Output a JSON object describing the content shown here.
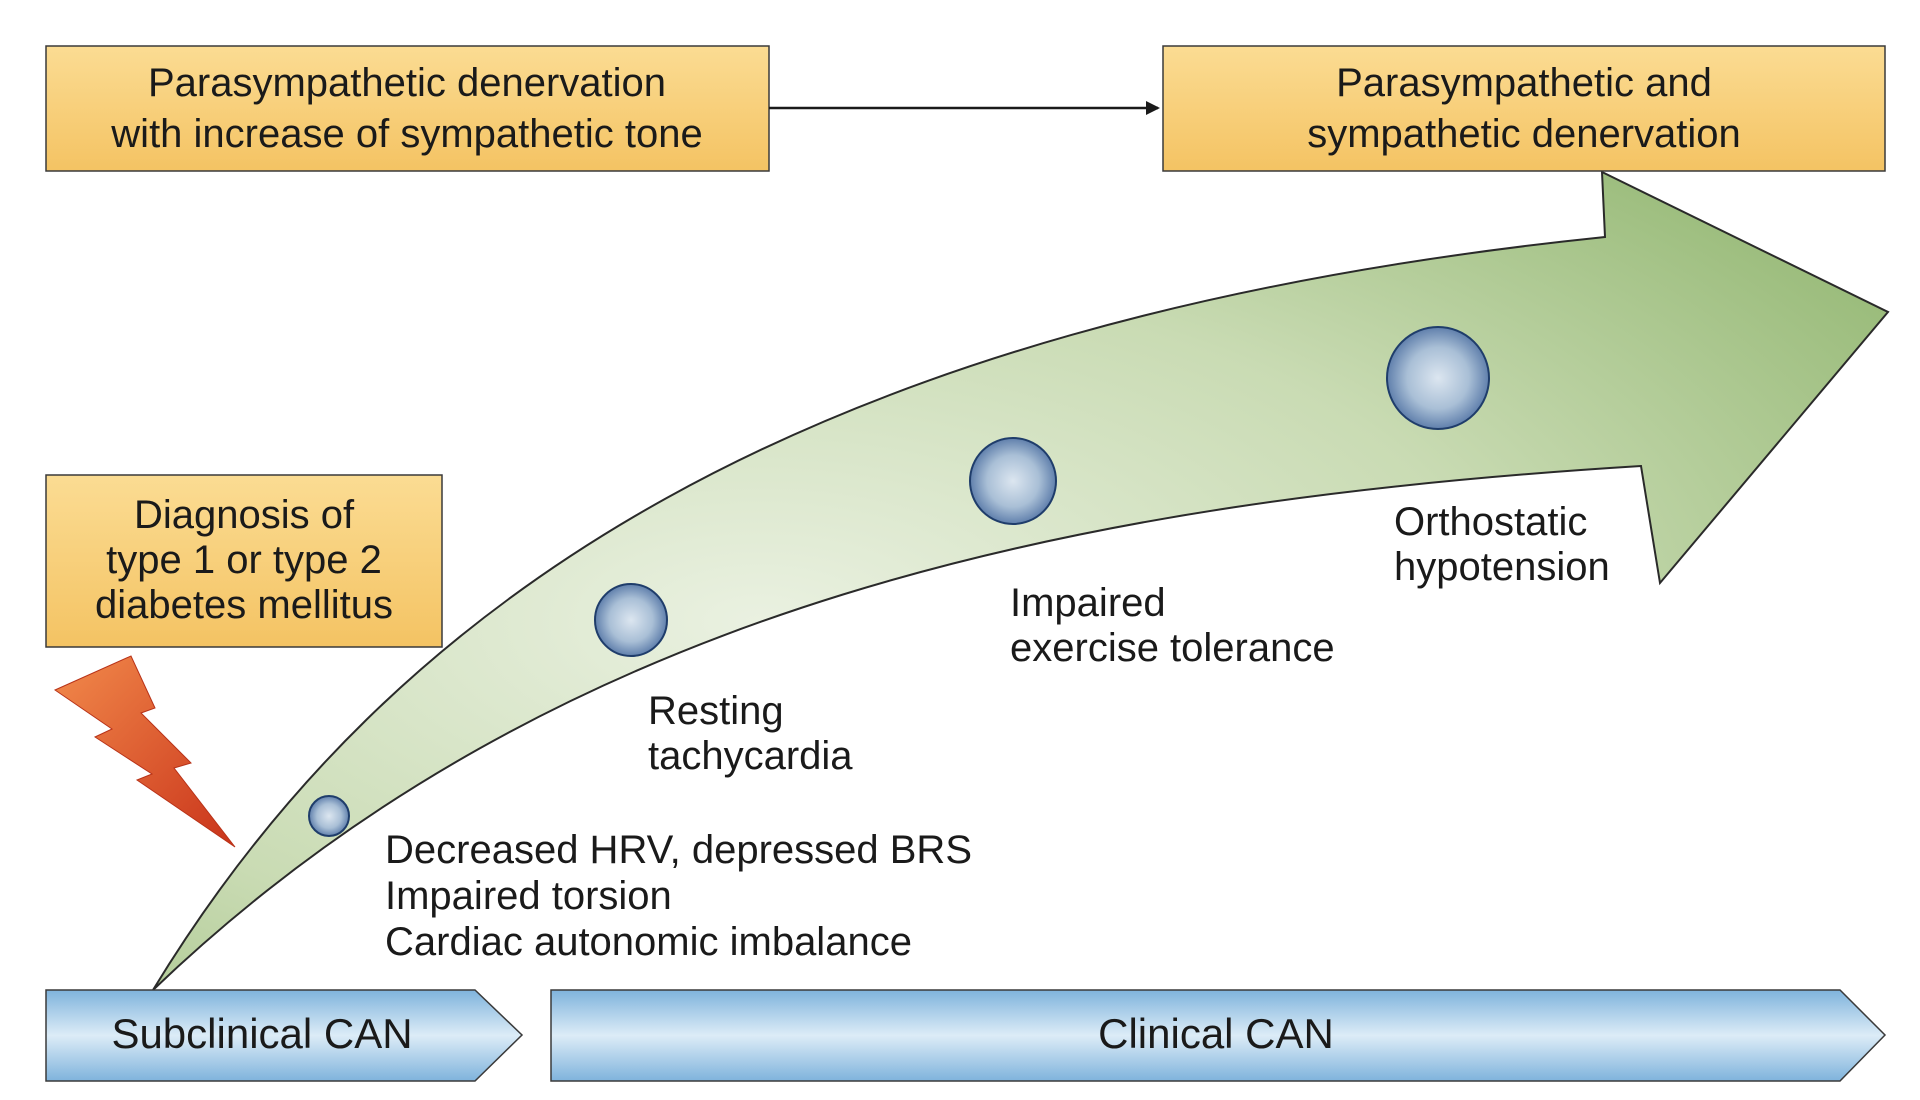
{
  "boxes": {
    "parasympathetic_denervation": [
      "Parasympathetic denervation",
      "with increase of sympathetic tone"
    ],
    "combined_denervation": [
      "Parasympathetic and",
      "sympathetic denervation"
    ],
    "diagnosis": [
      "Diagnosis of",
      "type 1 or type 2",
      "diabetes mellitus"
    ]
  },
  "stages": {
    "subclinical": "Subclinical CAN",
    "clinical": "Clinical CAN"
  },
  "milestones": {
    "early": [
      "Decreased HRV, depressed BRS",
      "Impaired torsion",
      "Cardiac autonomic imbalance"
    ],
    "resting": [
      "Resting",
      "tachycardia"
    ],
    "exercise": [
      "Impaired",
      "exercise tolerance"
    ],
    "orthostatic": [
      "Orthostatic",
      "hypotension"
    ]
  },
  "icons": {
    "lightning": "lightning-bolt-icon"
  },
  "colors": {
    "box_fill": "#f7ca70",
    "arrow_fill_light": "#e6eedb",
    "arrow_fill_dark": "#8fb56f",
    "band_fill": "#9cc7e6",
    "bolt": "#d94a23"
  }
}
